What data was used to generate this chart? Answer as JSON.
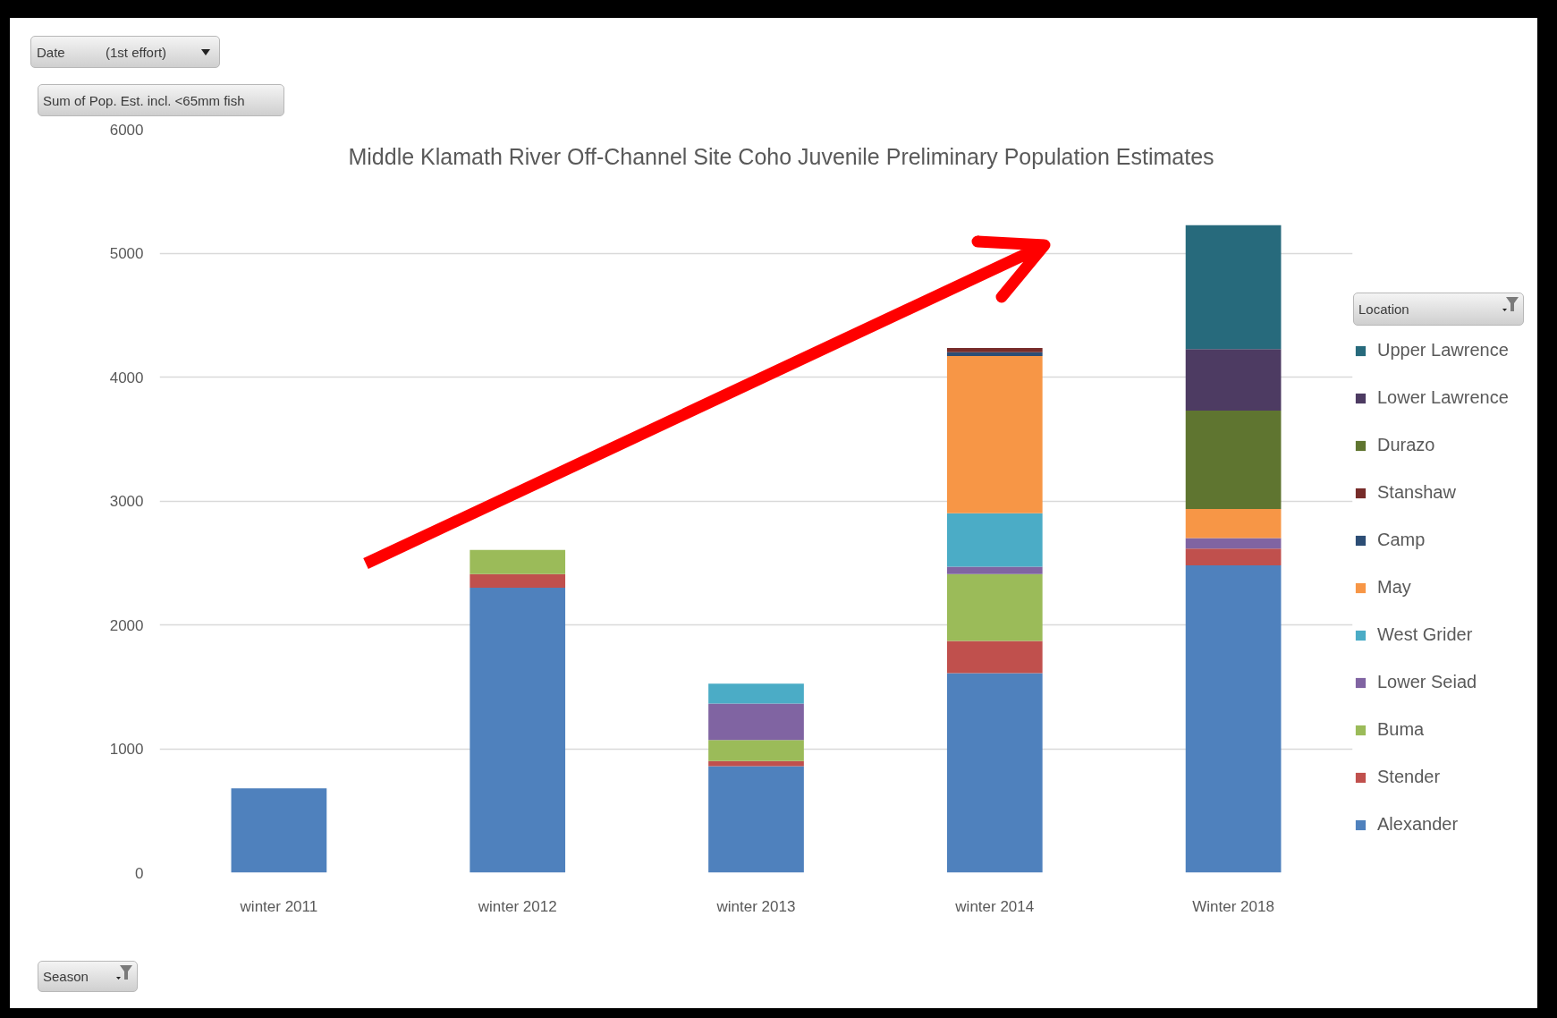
{
  "chart_data": {
    "type": "bar",
    "title": "Middle Klamath River Off-Channel Site Coho Juvenile Preliminary Population Estimates",
    "xlabel": "Season",
    "ylabel": "Sum of Pop. Est. incl. <65mm fish",
    "legend_title": "Location",
    "annotations": [
      "Date",
      "(1st effort)"
    ],
    "categories": [
      "winter 2011",
      "winter 2012",
      "winter 2013",
      "winter 2014",
      "Winter 2018"
    ],
    "stacked": true,
    "series": [
      {
        "name": "Alexander",
        "color": "#4f81bd",
        "values": [
          680,
          2300,
          860,
          1610,
          2480
        ]
      },
      {
        "name": "Stender",
        "color": "#c0504d",
        "values": [
          null,
          110,
          40,
          260,
          135
        ]
      },
      {
        "name": "Buma",
        "color": "#9bbb59",
        "values": [
          null,
          195,
          170,
          540,
          null
        ]
      },
      {
        "name": "Lower Seiad",
        "color": "#8064a2",
        "values": [
          null,
          null,
          295,
          60,
          85
        ]
      },
      {
        "name": "West Grider",
        "color": "#4bacc6",
        "values": [
          null,
          null,
          160,
          430,
          null
        ]
      },
      {
        "name": "May",
        "color": "#f79646",
        "values": [
          null,
          null,
          null,
          1270,
          235
        ]
      },
      {
        "name": "Camp",
        "color": "#2c4d75",
        "values": [
          null,
          null,
          null,
          30,
          null
        ]
      },
      {
        "name": "Stanshaw",
        "color": "#772c2a",
        "values": [
          null,
          null,
          null,
          35,
          null
        ]
      },
      {
        "name": "Durazo",
        "color": "#5f7530",
        "values": [
          null,
          null,
          null,
          null,
          795
        ]
      },
      {
        "name": "Lower Lawrence",
        "color": "#4d3b62",
        "values": [
          null,
          null,
          null,
          null,
          495
        ]
      },
      {
        "name": "Upper Lawrence",
        "color": "#276a7c",
        "values": [
          null,
          null,
          null,
          null,
          1000
        ]
      }
    ],
    "ylim": [
      0,
      6000
    ],
    "yticks": [
      0,
      1000,
      2000,
      3000,
      4000,
      5000,
      6000
    ],
    "grid": "y",
    "legend": "right"
  }
}
